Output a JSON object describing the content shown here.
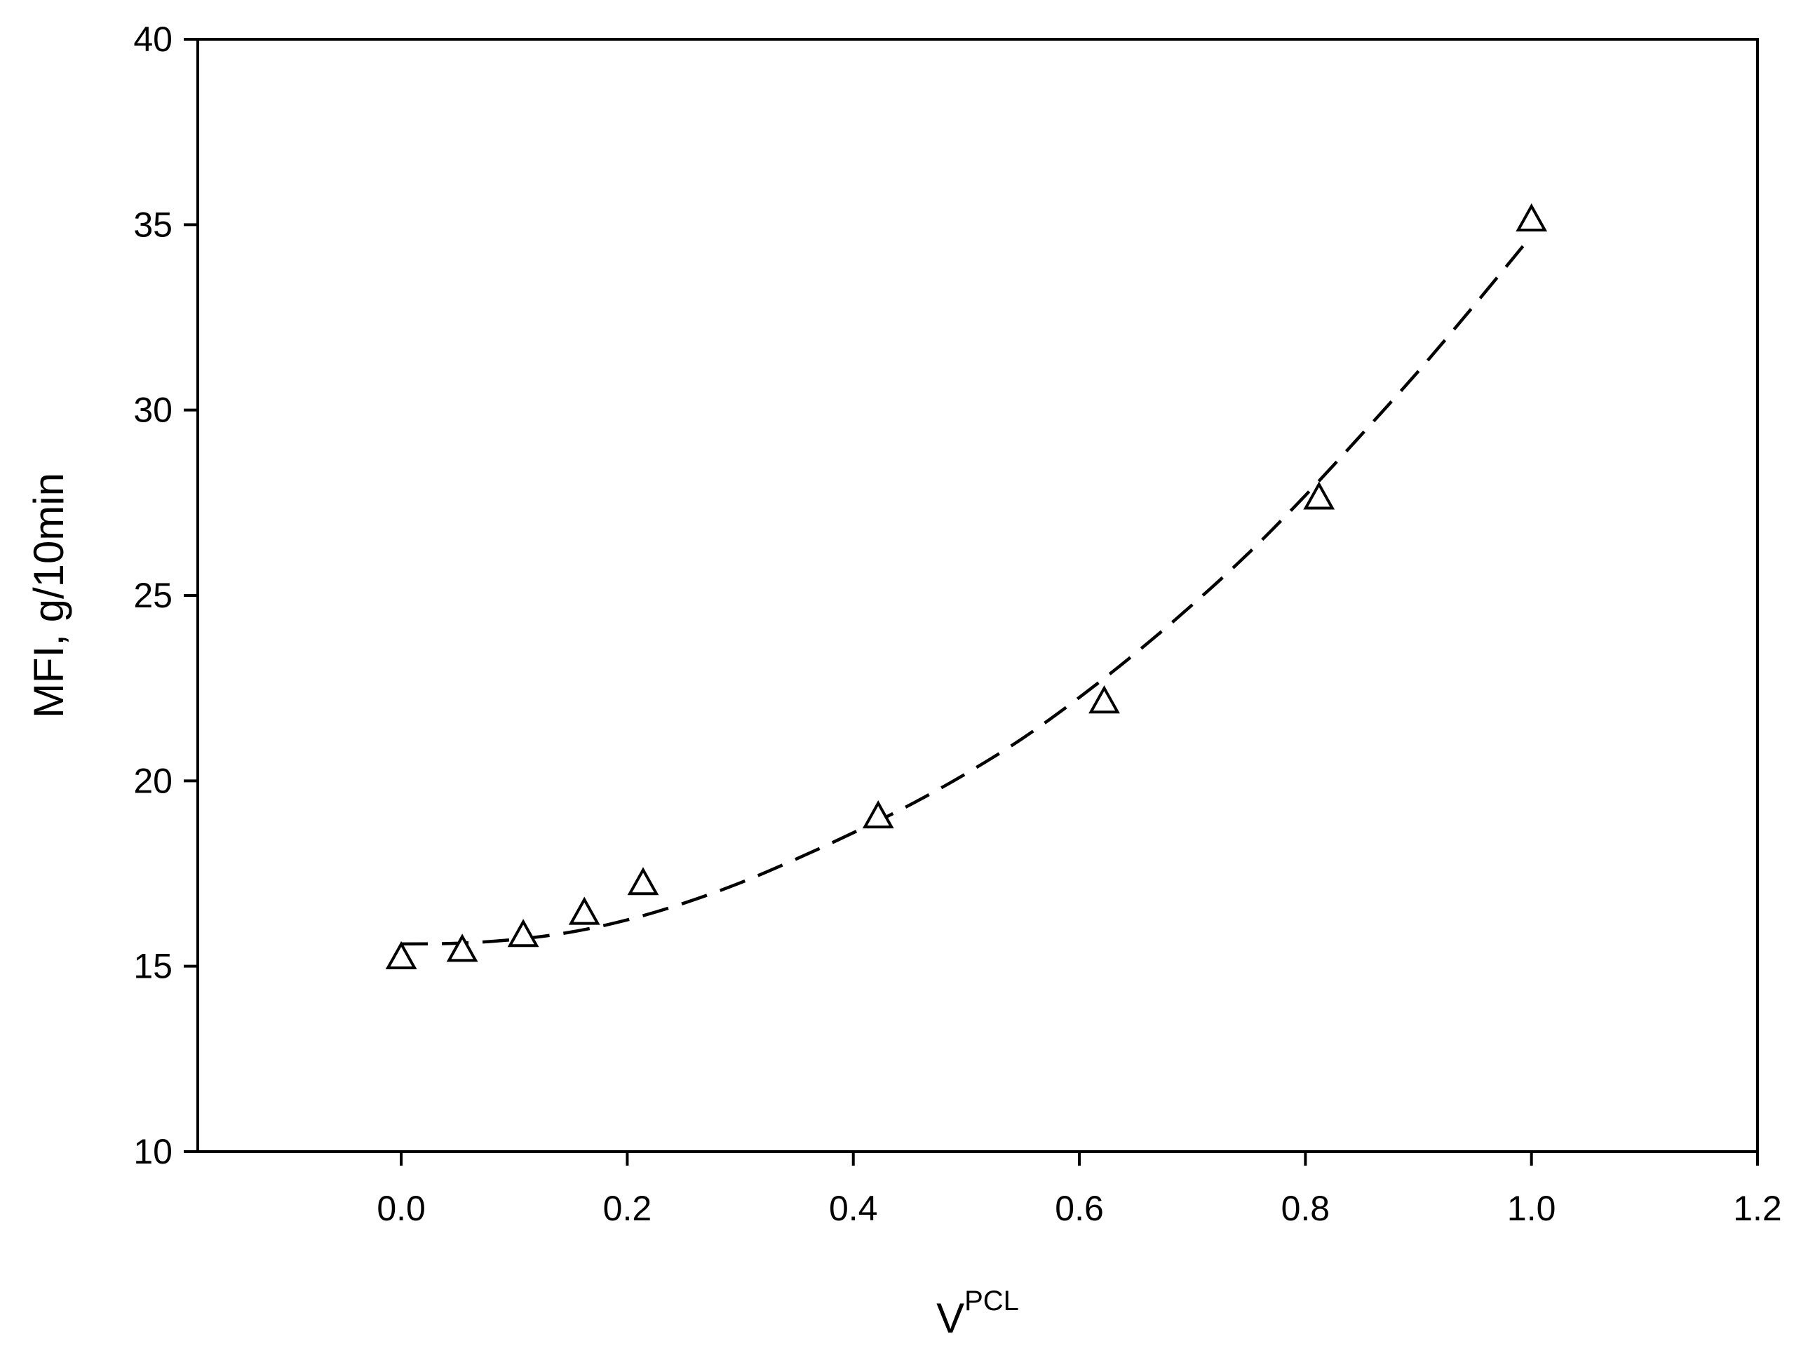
{
  "chart_data": {
    "type": "scatter",
    "title": "",
    "xlabel": {
      "main": "V",
      "superscript": "PCL"
    },
    "ylabel": "MFI, g/10min",
    "xlim": [
      -0.18,
      1.2
    ],
    "ylim": [
      10,
      40
    ],
    "x_ticks": [
      0.0,
      0.2,
      0.4,
      0.6,
      0.8,
      1.0,
      1.2
    ],
    "x_tick_labels": [
      "0.0",
      "0.2",
      "0.4",
      "0.6",
      "0.8",
      "1.0",
      "1.2"
    ],
    "y_ticks": [
      10,
      15,
      20,
      25,
      30,
      35,
      40
    ],
    "y_tick_labels": [
      "10",
      "15",
      "20",
      "25",
      "30",
      "35",
      "40"
    ],
    "grid": false,
    "legend": "none",
    "series": [
      {
        "kind": "points",
        "marker": "open-triangle",
        "color": "#000000",
        "x": [
          0.0,
          0.054,
          0.108,
          0.162,
          0.214,
          0.422,
          0.622,
          0.812,
          1.0
        ],
        "y": [
          15.2,
          15.4,
          15.8,
          16.4,
          17.2,
          19.0,
          22.1,
          27.6,
          35.1
        ]
      },
      {
        "kind": "fit-curve",
        "style": "dashed",
        "color": "#000000",
        "x": [
          0.0,
          0.05,
          0.1,
          0.15,
          0.2,
          0.25,
          0.3,
          0.35,
          0.4,
          0.45,
          0.5,
          0.55,
          0.6,
          0.65,
          0.7,
          0.75,
          0.8,
          0.85,
          0.9,
          0.95,
          1.0
        ],
        "y": [
          15.6,
          15.62,
          15.72,
          15.92,
          16.25,
          16.7,
          17.25,
          17.9,
          18.6,
          19.35,
          20.2,
          21.15,
          22.25,
          23.45,
          24.75,
          26.15,
          27.7,
          29.35,
          31.05,
          32.85,
          34.7
        ]
      }
    ]
  }
}
